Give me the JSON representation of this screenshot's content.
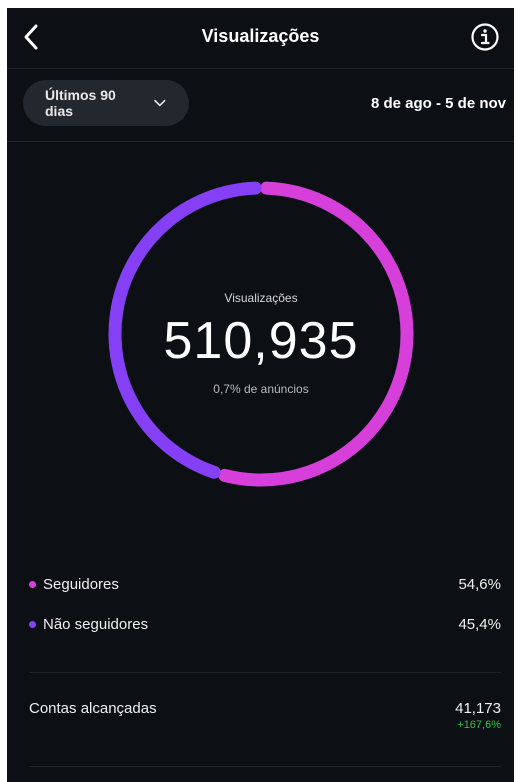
{
  "header": {
    "title": "Visualizações",
    "back_icon": "chevron-left-icon",
    "info_icon": "info-icon"
  },
  "filter": {
    "range_label": "Últimos 90 dias",
    "dropdown_icon": "chevron-down-icon",
    "date_range": "8 de ago - 5 de nov"
  },
  "summary": {
    "label": "Visualizações",
    "value": "510,935",
    "subtext": "0,7% de anúncios"
  },
  "chart_data": {
    "type": "pie",
    "categories": [
      "Seguidores",
      "Não seguidores"
    ],
    "values": [
      54.6,
      45.4
    ],
    "colors": [
      "#d63fd9",
      "#8540f5"
    ]
  },
  "legend": [
    {
      "label": "Seguidores",
      "value": "54,6%",
      "color": "#d63fd9"
    },
    {
      "label": "Não seguidores",
      "value": "45,4%",
      "color": "#8540f5"
    }
  ],
  "stats": {
    "reached_label": "Contas alcançadas",
    "reached_value": "41,173",
    "reached_change": "+167,6%",
    "change_color": "#2fbf4d"
  },
  "colors": {
    "background": "#0c0f14",
    "pill": "#23272e"
  }
}
